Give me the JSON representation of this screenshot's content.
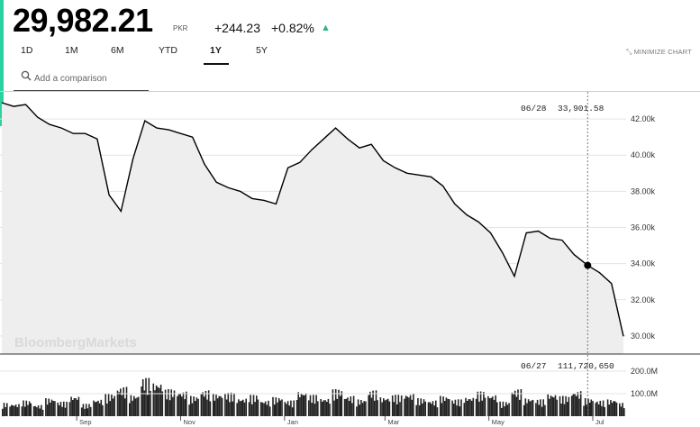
{
  "header": {
    "price": "29,982.21",
    "currency": "PKR",
    "change_abs": "+244.23",
    "change_pct": "+0.82%",
    "up_arrow": "▲"
  },
  "tabs": [
    {
      "label": "1D",
      "active": false
    },
    {
      "label": "1M",
      "active": false
    },
    {
      "label": "6M",
      "active": false
    },
    {
      "label": "YTD",
      "active": false
    },
    {
      "label": "1Y",
      "active": true
    },
    {
      "label": "5Y",
      "active": false
    }
  ],
  "minimize_label": "MINIMIZE CHART",
  "compare": {
    "placeholder": "Add a comparison"
  },
  "watermark": "BloombergMarkets",
  "tooltip": {
    "price_date": "06/28",
    "price_value": "33,901.58",
    "volume_date": "06/27",
    "volume_value": "111,720,650"
  },
  "colors": {
    "accent": "#2bd19f",
    "up": "#2bb78a",
    "line": "#000000",
    "area_fill": "#eeeeee"
  },
  "icons": {
    "search": "search-icon",
    "minimize": "minimize-icon",
    "up": "triangle-up-icon"
  },
  "chart_data": {
    "type": "area",
    "price": {
      "x": [
        "2016-07-19",
        "2016-07-26",
        "2016-08-02",
        "2016-08-09",
        "2016-08-16",
        "2016-08-23",
        "2016-08-30",
        "2016-09-06",
        "2016-09-13",
        "2016-09-20",
        "2016-09-27",
        "2016-10-04",
        "2016-10-11",
        "2016-10-18",
        "2016-10-25",
        "2016-11-01",
        "2016-11-08",
        "2016-11-15",
        "2016-11-22",
        "2016-11-29",
        "2016-12-06",
        "2016-12-13",
        "2016-12-20",
        "2016-12-27",
        "2017-01-03",
        "2017-01-10",
        "2017-01-17",
        "2017-01-24",
        "2017-01-31",
        "2017-02-07",
        "2017-02-14",
        "2017-02-21",
        "2017-02-28",
        "2017-03-07",
        "2017-03-14",
        "2017-03-21",
        "2017-03-28",
        "2017-04-04",
        "2017-04-11",
        "2017-04-18",
        "2017-04-25",
        "2017-05-02",
        "2017-05-09",
        "2017-05-16",
        "2017-05-23",
        "2017-05-30",
        "2017-06-06",
        "2017-06-13",
        "2017-06-20",
        "2017-06-28",
        "2017-07-05",
        "2017-07-12",
        "2017-07-19"
      ],
      "y": [
        42900,
        42700,
        42800,
        42100,
        41700,
        41500,
        41200,
        41200,
        40900,
        37800,
        36900,
        39800,
        41900,
        41500,
        41400,
        41200,
        41000,
        39500,
        38500,
        38200,
        38000,
        37600,
        37500,
        37300,
        39300,
        39600,
        40300,
        40900,
        41500,
        40900,
        40400,
        40600,
        39700,
        39300,
        39000,
        38900,
        38800,
        38300,
        37300,
        36700,
        36300,
        35700,
        34600,
        33300,
        35700,
        35800,
        35400,
        35300,
        34500,
        33902,
        33500,
        32900,
        29982
      ]
    },
    "volume": {
      "values": [
        60,
        55,
        70,
        50,
        80,
        65,
        90,
        55,
        75,
        100,
        130,
        95,
        170,
        150,
        120,
        110,
        90,
        115,
        100,
        105,
        80,
        95,
        70,
        85,
        70,
        110,
        95,
        80,
        120,
        90,
        75,
        115,
        85,
        95,
        100,
        80,
        70,
        90,
        75,
        85,
        110,
        95,
        65,
        120,
        80,
        75,
        100,
        90,
        112,
        80,
        70,
        75,
        60
      ]
    },
    "y_ticks": [
      "42.00k",
      "40.00k",
      "38.00k",
      "36.00k",
      "34.00k",
      "32.00k",
      "30.00k"
    ],
    "ylim": [
      29000,
      43500
    ],
    "volume_ticks": [
      "200.0M",
      "100.0M"
    ],
    "x_ticks": [
      "Sep",
      "Nov",
      "Jan",
      "Mar",
      "May",
      "Jul"
    ],
    "hover_index": 49
  }
}
